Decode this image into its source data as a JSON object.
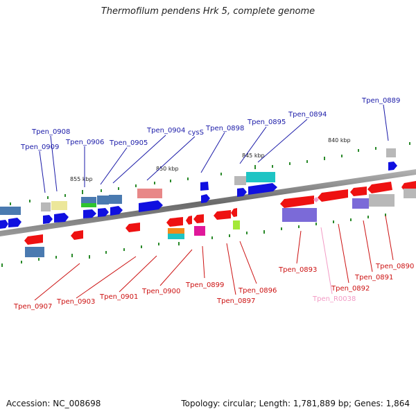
{
  "title": "Thermofilum pendens Hrk 5, complete genome",
  "accession": "Accession: NC_008698",
  "topology": "Topology: circular; Length: 1,781,889 bp; Genes: 1,864",
  "ticks": [
    "855 kbp",
    "850 kbp",
    "845 kbp",
    "840 kbp"
  ],
  "colors": {
    "forward_label": "#1a1aa8",
    "reverse_label": "#cc1111",
    "rna_label": "#f29ac4",
    "forward_gene": "#1010e0",
    "reverse_gene": "#ee1111",
    "backbone": "#808080"
  },
  "forward_labels": [
    "Tpen_0909",
    "Tpen_0908",
    "Tpen_0906",
    "Tpen_0905",
    "Tpen_0904",
    "cysS",
    "Tpen_0898",
    "Tpen_0895",
    "Tpen_0894",
    "Tpen_0889"
  ],
  "reverse_labels": [
    "Tpen_0907",
    "Tpen_0903",
    "Tpen_0901",
    "Tpen_0900",
    "Tpen_0899",
    "Tpen_0897",
    "Tpen_0896",
    "Tpen_0893",
    "Tpen_0892",
    "Tpen_0891",
    "Tpen_0890"
  ],
  "rna_labels": [
    "Tpen_R0038"
  ]
}
